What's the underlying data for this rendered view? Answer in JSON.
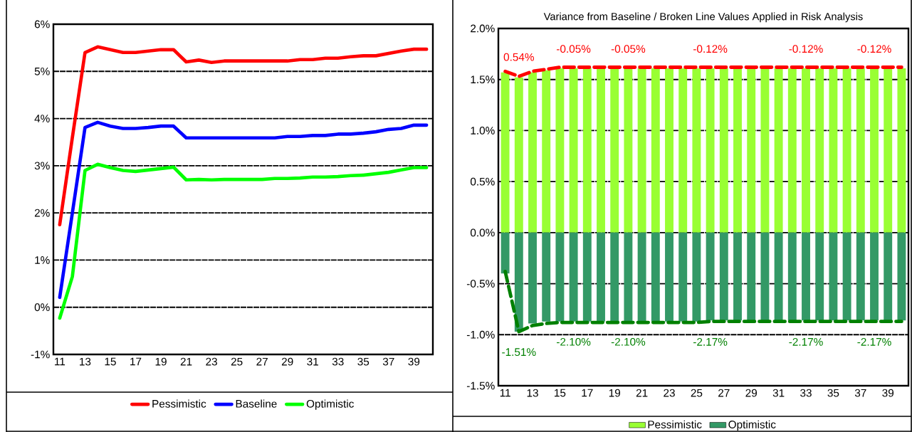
{
  "chart_data": [
    {
      "type": "line",
      "x": [
        11,
        12,
        13,
        14,
        15,
        16,
        17,
        18,
        19,
        20,
        21,
        22,
        23,
        24,
        25,
        26,
        27,
        28,
        29,
        30,
        31,
        32,
        33,
        34,
        35,
        36,
        37,
        38,
        39,
        40
      ],
      "xlim": [
        10.5,
        40.5
      ],
      "xticks": [
        11,
        13,
        15,
        17,
        19,
        21,
        23,
        25,
        27,
        29,
        31,
        33,
        35,
        37,
        39
      ],
      "ylim": [
        -1,
        6
      ],
      "yticks": [
        {
          "value": -1,
          "label": "-1%"
        },
        {
          "value": 0,
          "label": "0%"
        },
        {
          "value": 1,
          "label": "1%"
        },
        {
          "value": 2,
          "label": "2%"
        },
        {
          "value": 3,
          "label": "3%"
        },
        {
          "value": 4,
          "label": "4%"
        },
        {
          "value": 5,
          "label": "5%"
        },
        {
          "value": 6,
          "label": "6%"
        }
      ],
      "grid": "y",
      "legend": "bottom",
      "series": [
        {
          "name": "Pessimistic",
          "color": "#ff0000",
          "values": [
            1.75,
            3.6,
            5.4,
            5.52,
            5.46,
            5.4,
            5.4,
            5.43,
            5.46,
            5.46,
            5.2,
            5.24,
            5.19,
            5.22,
            5.22,
            5.22,
            5.22,
            5.22,
            5.22,
            5.25,
            5.25,
            5.28,
            5.28,
            5.31,
            5.33,
            5.33,
            5.38,
            5.43,
            5.47,
            5.47
          ]
        },
        {
          "name": "Baseline",
          "color": "#0000ff",
          "values": [
            0.21,
            2.0,
            3.81,
            3.92,
            3.84,
            3.79,
            3.79,
            3.81,
            3.84,
            3.84,
            3.59,
            3.59,
            3.59,
            3.59,
            3.59,
            3.59,
            3.59,
            3.59,
            3.62,
            3.62,
            3.64,
            3.64,
            3.67,
            3.67,
            3.69,
            3.72,
            3.77,
            3.79,
            3.86,
            3.86
          ]
        },
        {
          "name": "Optimistic",
          "color": "#00ff00",
          "values": [
            -0.23,
            0.65,
            2.9,
            3.03,
            2.96,
            2.9,
            2.88,
            2.91,
            2.94,
            2.97,
            2.7,
            2.71,
            2.7,
            2.71,
            2.71,
            2.71,
            2.71,
            2.73,
            2.73,
            2.74,
            2.76,
            2.76,
            2.77,
            2.79,
            2.8,
            2.83,
            2.86,
            2.91,
            2.96,
            2.96
          ]
        }
      ]
    },
    {
      "type": "bar",
      "title": "Variance from Baseline / Broken Line Values Applied in Risk Analysis",
      "x": [
        11,
        12,
        13,
        14,
        15,
        16,
        17,
        18,
        19,
        20,
        21,
        22,
        23,
        24,
        25,
        26,
        27,
        28,
        29,
        30,
        31,
        32,
        33,
        34,
        35,
        36,
        37,
        38,
        39,
        40
      ],
      "xlim": [
        10.5,
        40.5
      ],
      "xticks": [
        11,
        13,
        15,
        17,
        19,
        21,
        23,
        25,
        27,
        29,
        31,
        33,
        35,
        37,
        39
      ],
      "ylim": [
        -1.5,
        2.0
      ],
      "yticks": [
        {
          "value": -1.5,
          "label": "-1.5%"
        },
        {
          "value": -1.0,
          "label": "-1.0%"
        },
        {
          "value": -0.5,
          "label": "-0.5%"
        },
        {
          "value": 0.0,
          "label": "0.0%"
        },
        {
          "value": 0.5,
          "label": "0.5%"
        },
        {
          "value": 1.0,
          "label": "1.0%"
        },
        {
          "value": 1.5,
          "label": "1.5%"
        },
        {
          "value": 2.0,
          "label": "2.0%"
        }
      ],
      "grid": "y",
      "legend": "bottom",
      "series": [
        {
          "name": "Pessimistic",
          "type": "bar",
          "color": "#99ff33",
          "values": [
            1.57,
            1.52,
            1.57,
            1.59,
            1.61,
            1.61,
            1.61,
            1.61,
            1.61,
            1.61,
            1.61,
            1.61,
            1.61,
            1.61,
            1.61,
            1.61,
            1.61,
            1.61,
            1.61,
            1.61,
            1.61,
            1.61,
            1.61,
            1.61,
            1.61,
            1.61,
            1.61,
            1.61,
            1.61,
            1.61
          ]
        },
        {
          "name": "Optimistic",
          "type": "bar",
          "color": "#339966",
          "values": [
            -0.4,
            -0.97,
            -0.89,
            -0.87,
            -0.87,
            -0.87,
            -0.87,
            -0.87,
            -0.87,
            -0.87,
            -0.87,
            -0.87,
            -0.87,
            -0.87,
            -0.87,
            -0.86,
            -0.86,
            -0.86,
            -0.86,
            -0.86,
            -0.86,
            -0.86,
            -0.86,
            -0.86,
            -0.86,
            -0.86,
            -0.86,
            -0.86,
            -0.86,
            -0.86
          ]
        },
        {
          "type": "line",
          "line_style": "dashed",
          "color": "#ff0000",
          "values": [
            1.58,
            1.53,
            1.58,
            1.6,
            1.62,
            1.62,
            1.62,
            1.62,
            1.62,
            1.62,
            1.62,
            1.62,
            1.62,
            1.62,
            1.62,
            1.62,
            1.62,
            1.62,
            1.62,
            1.62,
            1.62,
            1.62,
            1.62,
            1.62,
            1.62,
            1.62,
            1.62,
            1.62,
            1.62,
            1.62
          ]
        },
        {
          "type": "line",
          "line_style": "dashed",
          "color": "#008000",
          "values": [
            -0.38,
            -0.97,
            -0.91,
            -0.89,
            -0.88,
            -0.88,
            -0.88,
            -0.88,
            -0.88,
            -0.88,
            -0.88,
            -0.88,
            -0.88,
            -0.88,
            -0.88,
            -0.87,
            -0.87,
            -0.87,
            -0.87,
            -0.87,
            -0.87,
            -0.87,
            -0.87,
            -0.87,
            -0.87,
            -0.87,
            -0.87,
            -0.87,
            -0.87,
            -0.87
          ]
        }
      ],
      "stacked": true,
      "annotations": [
        "0.54%",
        "-0.05%",
        "-0.05%",
        "-0.12%",
        "-0.12%",
        "-0.12%",
        "-1.51%",
        "-2.10%",
        "-2.10%",
        "-2.17%",
        "-2.17%",
        "-2.17%"
      ]
    }
  ]
}
